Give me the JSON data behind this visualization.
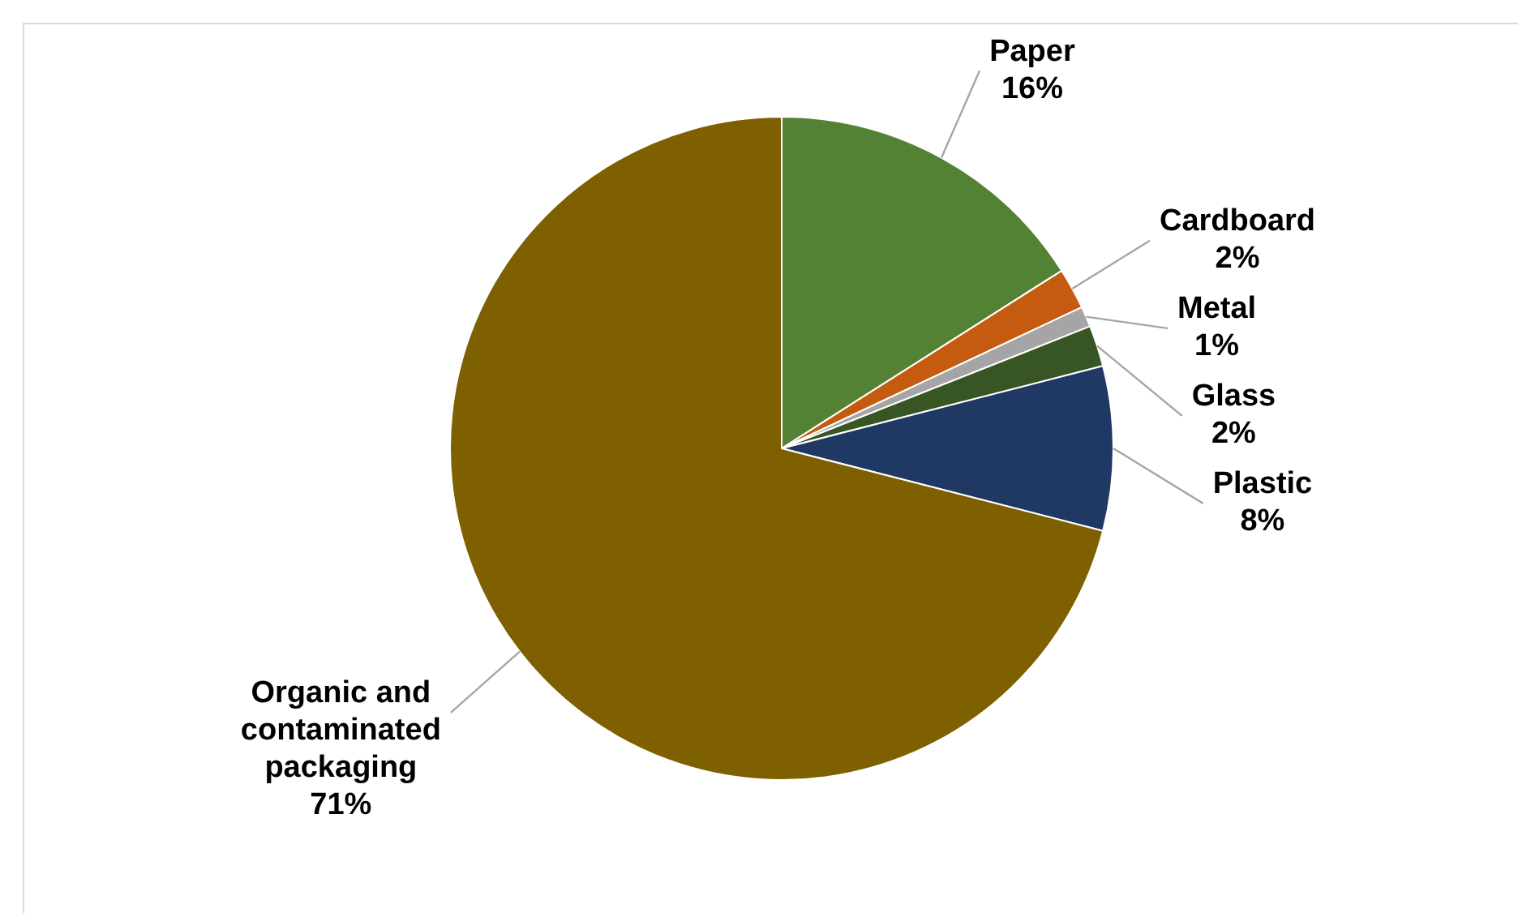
{
  "chart_data": {
    "type": "pie",
    "categories": [
      "Paper",
      "Cardboard",
      "Metal",
      "Glass",
      "Plastic",
      "Organic and contaminated packaging"
    ],
    "values": [
      16,
      2,
      1,
      2,
      8,
      71
    ],
    "value_labels": [
      "16%",
      "2%",
      "1%",
      "2%",
      "8%",
      "71%"
    ],
    "colors": [
      "#548235",
      "#c55a11",
      "#a5a5a5",
      "#375623",
      "#203864",
      "#7f6000"
    ],
    "legend": false
  }
}
